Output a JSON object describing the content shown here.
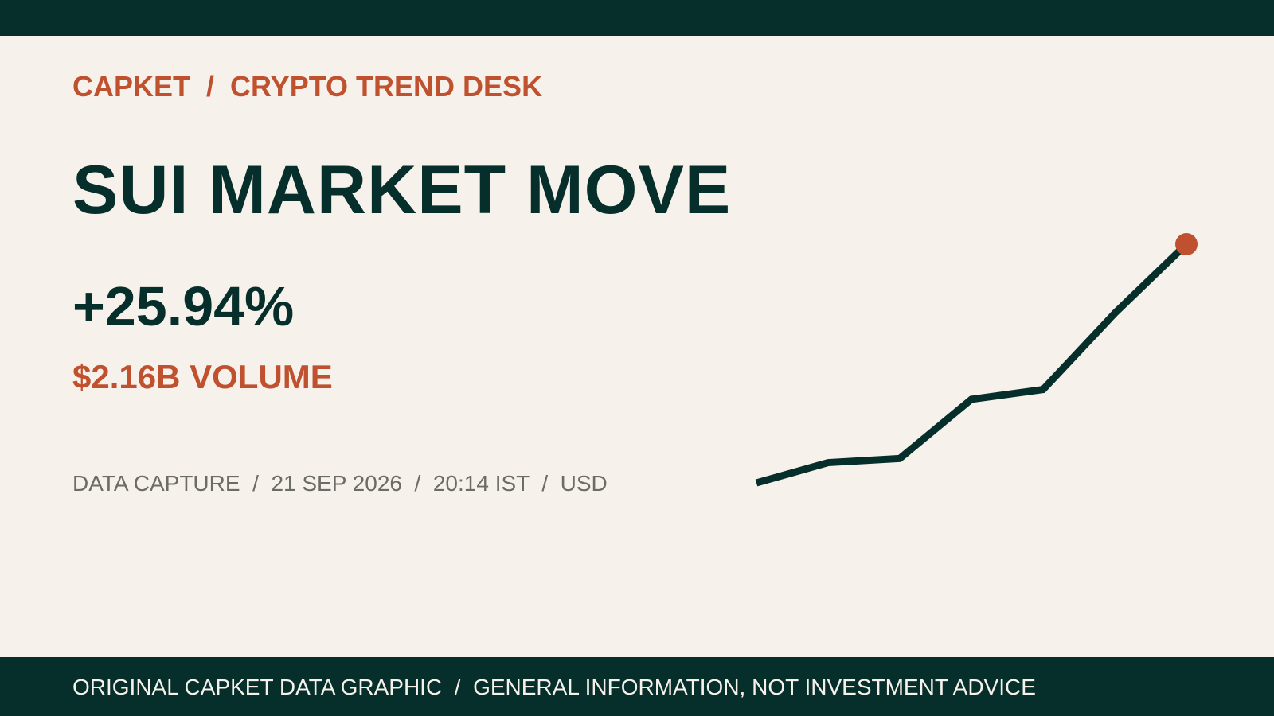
{
  "header": {
    "kicker": "CAPKET  /  CRYPTO TREND DESK",
    "title": "SUI MARKET MOVE"
  },
  "metrics": {
    "change": "+25.94%",
    "volume": "$2.16B VOLUME"
  },
  "meta": "DATA CAPTURE  /  21 SEP 2026  /  20:14 IST  /  USD",
  "footer": "ORIGINAL CAPKET DATA GRAPHIC  /  GENERAL INFORMATION, NOT INVESTMENT ADVICE",
  "chart_data": {
    "type": "line",
    "values": [
      0,
      2.2,
      2.65,
      9.09,
      10.15,
      18.44,
      25.94
    ],
    "color": "#062e2a",
    "marker_color": "#c0512f"
  }
}
